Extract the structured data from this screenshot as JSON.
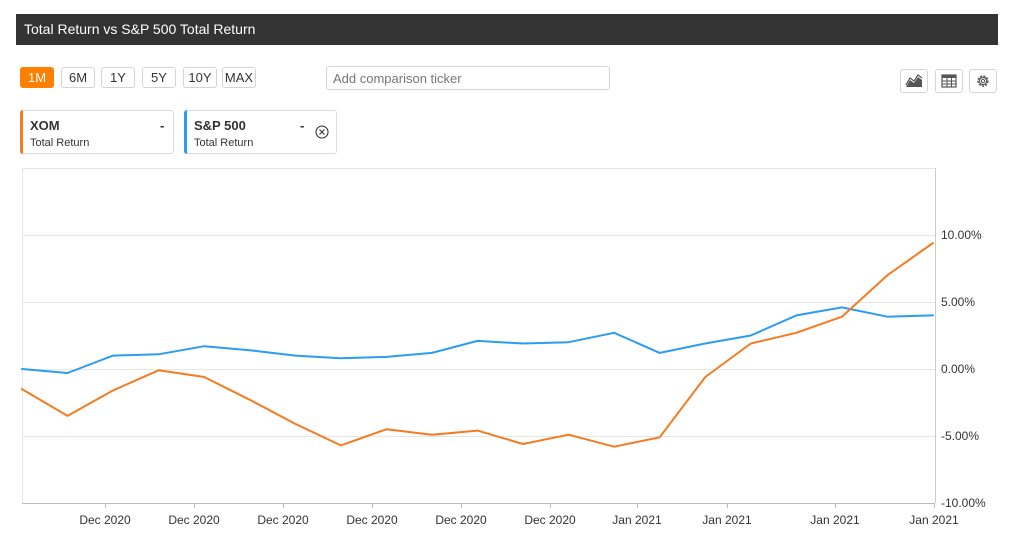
{
  "header": {
    "title": "Total Return vs S&P 500 Total Return"
  },
  "ranges": [
    {
      "label": "1M",
      "active": true
    },
    {
      "label": "6M",
      "active": false
    },
    {
      "label": "1Y",
      "active": false
    },
    {
      "label": "5Y",
      "active": false
    },
    {
      "label": "10Y",
      "active": false
    },
    {
      "label": "MAX",
      "active": false
    }
  ],
  "comparison": {
    "placeholder": "Add comparison ticker"
  },
  "toolbar": {
    "icons": [
      "area-chart-icon",
      "table-icon",
      "gear-icon"
    ]
  },
  "legend": [
    {
      "symbol": "XOM",
      "value": "-",
      "subtitle": "Total Return",
      "color": "#f47b20"
    },
    {
      "symbol": "S&P 500",
      "value": "-",
      "subtitle": "Total Return",
      "color": "#2b9cf2",
      "removable": true
    }
  ],
  "chart_data": {
    "type": "line",
    "title": "Total Return vs S&P 500 Total Return",
    "xlabel": "",
    "ylabel": "",
    "ylim": [
      -10,
      15
    ],
    "y_ticks": [
      "10.00%",
      "5.00%",
      "0.00%",
      "-5.00%",
      "-10.00%"
    ],
    "y_tick_values": [
      10,
      5,
      0,
      -5,
      -10
    ],
    "x_tick_labels": [
      "Dec 2020",
      "Dec 2020",
      "Dec 2020",
      "Dec 2020",
      "Dec 2020",
      "Dec 2020",
      "Jan 2021",
      "Jan 2021",
      "Jan 2021",
      "Jan 2021"
    ],
    "grid": true,
    "y_axis_side": "right",
    "series": [
      {
        "name": "XOM",
        "color": "#f47b20",
        "values": [
          -1.5,
          -3.5,
          -1.6,
          -0.1,
          -0.6,
          -2.3,
          -4.1,
          -5.7,
          -4.5,
          -4.9,
          -4.6,
          -5.6,
          -4.9,
          -5.8,
          -5.1,
          -0.6,
          1.9,
          2.7,
          3.9,
          7.0,
          9.4
        ]
      },
      {
        "name": "S&P 500",
        "color": "#2b9cf2",
        "values": [
          0.0,
          -0.3,
          1.0,
          1.1,
          1.7,
          1.4,
          1.0,
          0.8,
          0.9,
          1.2,
          2.1,
          1.9,
          2.0,
          2.7,
          1.2,
          1.9,
          2.5,
          4.0,
          4.6,
          3.9,
          4.0
        ]
      }
    ]
  }
}
